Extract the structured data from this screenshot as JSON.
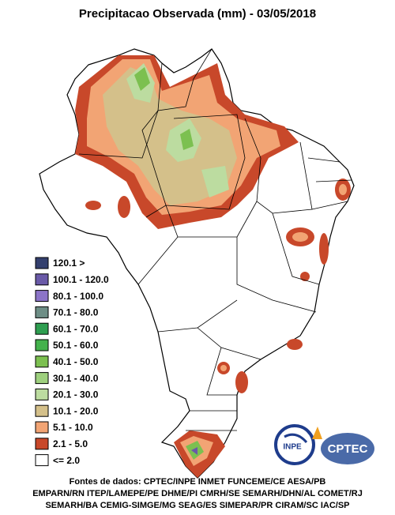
{
  "title": "Precipitacao Observada (mm) - 03/05/2018",
  "legend": [
    {
      "label": "120.1 >",
      "color": "#34406e"
    },
    {
      "label": "100.1 - 120.0",
      "color": "#6a5aa8"
    },
    {
      "label": "80.1 - 100.0",
      "color": "#8c74c8"
    },
    {
      "label": "70.1 - 80.0",
      "color": "#6e8e86"
    },
    {
      "label": "60.1 - 70.0",
      "color": "#2e9e50"
    },
    {
      "label": "50.1 - 60.0",
      "color": "#44b24c"
    },
    {
      "label": "40.1 - 50.0",
      "color": "#7cc050"
    },
    {
      "label": "30.1 - 40.0",
      "color": "#9ed07e"
    },
    {
      "label": "20.1 - 30.0",
      "color": "#bcdca0"
    },
    {
      "label": "10.1 - 20.0",
      "color": "#d4c08a"
    },
    {
      "label": "5.1 - 10.0",
      "color": "#f2a474"
    },
    {
      "label": "2.1 - 5.0",
      "color": "#c8482a"
    },
    {
      "label": "<= 2.0",
      "color": "#ffffff"
    }
  ],
  "logos": {
    "inpe": "INPE",
    "cptec": "CPTEC"
  },
  "footer": [
    "Fontes de dados: CPTEC/INPE INMET FUNCEME/CE AESA/PB",
    "EMPARN/RN ITEP/LAMEPE/PE DHME/PI CMRH/SE SEMARH/DHN/AL COMET/RJ",
    "SEMARH/BA CEMIG-SIMGE/MG SEAG/ES SIMEPAR/PR CIRAM/SC IAC/SP"
  ]
}
